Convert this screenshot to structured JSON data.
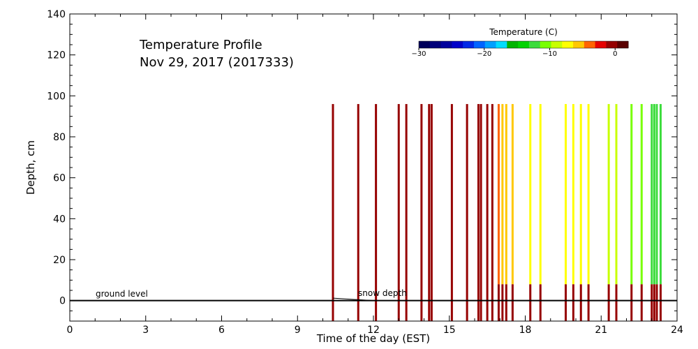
{
  "chart_data": {
    "type": "heatmap",
    "title": "Temperature Profile",
    "subtitle": "Nov 29, 2017 (2017333)",
    "xlabel": "Time of the day (EST)",
    "ylabel": "Depth, cm",
    "xlim": [
      0,
      24
    ],
    "ylim": [
      -10,
      140
    ],
    "x_ticks": [
      0,
      3,
      6,
      9,
      12,
      15,
      18,
      21,
      24
    ],
    "y_ticks": [
      0,
      20,
      40,
      60,
      80,
      100,
      120,
      140
    ],
    "colorbar": {
      "title": "Temperature (C)",
      "range": [
        -30,
        2
      ],
      "ticks": [
        -30,
        -20,
        -10,
        0
      ],
      "tick_labels": [
        "−30",
        "−20",
        "−10",
        "0"
      ],
      "colors": [
        "#00005a",
        "#00007a",
        "#00009c",
        "#0000c8",
        "#0028e6",
        "#0064ff",
        "#00a0ff",
        "#00dcff",
        "#00b400",
        "#00d200",
        "#3cdc3c",
        "#78ff00",
        "#c8ff00",
        "#ffff00",
        "#ffc800",
        "#ff6400",
        "#e60000",
        "#960000",
        "#5a0000"
      ]
    },
    "annotations": {
      "ground_level": "ground level",
      "snow_depth": "snow depth"
    },
    "ground_level_depth": 0,
    "profile_top": 96,
    "snow_depth_line": [
      [
        10.4,
        1.2
      ],
      [
        12.0,
        0
      ]
    ],
    "profiles": [
      {
        "t": 10.4,
        "segments": [
          [
            -10,
            96,
            -1
          ]
        ]
      },
      {
        "t": 11.4,
        "segments": [
          [
            -10,
            96,
            -1
          ]
        ]
      },
      {
        "t": 12.1,
        "segments": [
          [
            -10,
            96,
            -1
          ]
        ]
      },
      {
        "t": 13.0,
        "segments": [
          [
            -10,
            96,
            -1
          ]
        ]
      },
      {
        "t": 13.3,
        "segments": [
          [
            -10,
            96,
            -1
          ]
        ]
      },
      {
        "t": 13.9,
        "segments": [
          [
            -10,
            96,
            -1
          ]
        ]
      },
      {
        "t": 14.2,
        "segments": [
          [
            -10,
            96,
            -1
          ]
        ]
      },
      {
        "t": 14.3,
        "segments": [
          [
            -10,
            96,
            -1
          ]
        ]
      },
      {
        "t": 15.1,
        "segments": [
          [
            -10,
            96,
            -1
          ]
        ]
      },
      {
        "t": 15.7,
        "segments": [
          [
            -10,
            96,
            -1
          ]
        ]
      },
      {
        "t": 16.15,
        "segments": [
          [
            -10,
            96,
            0
          ]
        ]
      },
      {
        "t": 16.25,
        "segments": [
          [
            -10,
            96,
            0
          ]
        ]
      },
      {
        "t": 16.5,
        "segments": [
          [
            -10,
            96,
            0
          ]
        ]
      },
      {
        "t": 16.7,
        "segments": [
          [
            -10,
            96,
            -1
          ]
        ]
      },
      {
        "t": 16.95,
        "segments": [
          [
            -10,
            8,
            0
          ],
          [
            8,
            96,
            -4
          ]
        ]
      },
      {
        "t": 17.1,
        "segments": [
          [
            -10,
            8,
            0
          ],
          [
            8,
            96,
            -5
          ]
        ]
      },
      {
        "t": 17.25,
        "segments": [
          [
            -10,
            8,
            0
          ],
          [
            8,
            96,
            -6
          ]
        ]
      },
      {
        "t": 17.5,
        "segments": [
          [
            -10,
            8,
            0
          ],
          [
            8,
            96,
            -6
          ]
        ]
      },
      {
        "t": 18.2,
        "segments": [
          [
            -10,
            8,
            0
          ],
          [
            8,
            96,
            -8
          ]
        ]
      },
      {
        "t": 18.6,
        "segments": [
          [
            -10,
            8,
            0
          ],
          [
            8,
            96,
            -8
          ]
        ]
      },
      {
        "t": 19.6,
        "segments": [
          [
            -10,
            8,
            0
          ],
          [
            8,
            96,
            -8
          ]
        ]
      },
      {
        "t": 19.9,
        "segments": [
          [
            -10,
            8,
            0
          ],
          [
            8,
            96,
            -8
          ]
        ]
      },
      {
        "t": 20.2,
        "segments": [
          [
            -10,
            8,
            0
          ],
          [
            8,
            96,
            -8
          ]
        ]
      },
      {
        "t": 20.5,
        "segments": [
          [
            -10,
            8,
            0
          ],
          [
            8,
            96,
            -8
          ]
        ]
      },
      {
        "t": 21.3,
        "segments": [
          [
            -10,
            8,
            0
          ],
          [
            8,
            96,
            -9
          ]
        ]
      },
      {
        "t": 21.6,
        "segments": [
          [
            -10,
            8,
            0
          ],
          [
            8,
            96,
            -9
          ]
        ]
      },
      {
        "t": 22.2,
        "segments": [
          [
            -10,
            8,
            0
          ],
          [
            8,
            96,
            -10
          ]
        ]
      },
      {
        "t": 22.6,
        "segments": [
          [
            -10,
            8,
            0
          ],
          [
            8,
            96,
            -10
          ]
        ]
      },
      {
        "t": 23.0,
        "segments": [
          [
            -10,
            8,
            0
          ],
          [
            8,
            96,
            -12
          ]
        ]
      },
      {
        "t": 23.1,
        "segments": [
          [
            -10,
            8,
            0
          ],
          [
            8,
            96,
            -12
          ]
        ]
      },
      {
        "t": 23.2,
        "segments": [
          [
            -10,
            8,
            0
          ],
          [
            8,
            96,
            -12
          ]
        ]
      },
      {
        "t": 23.35,
        "segments": [
          [
            -10,
            8,
            0
          ],
          [
            8,
            96,
            -12
          ]
        ]
      }
    ]
  }
}
